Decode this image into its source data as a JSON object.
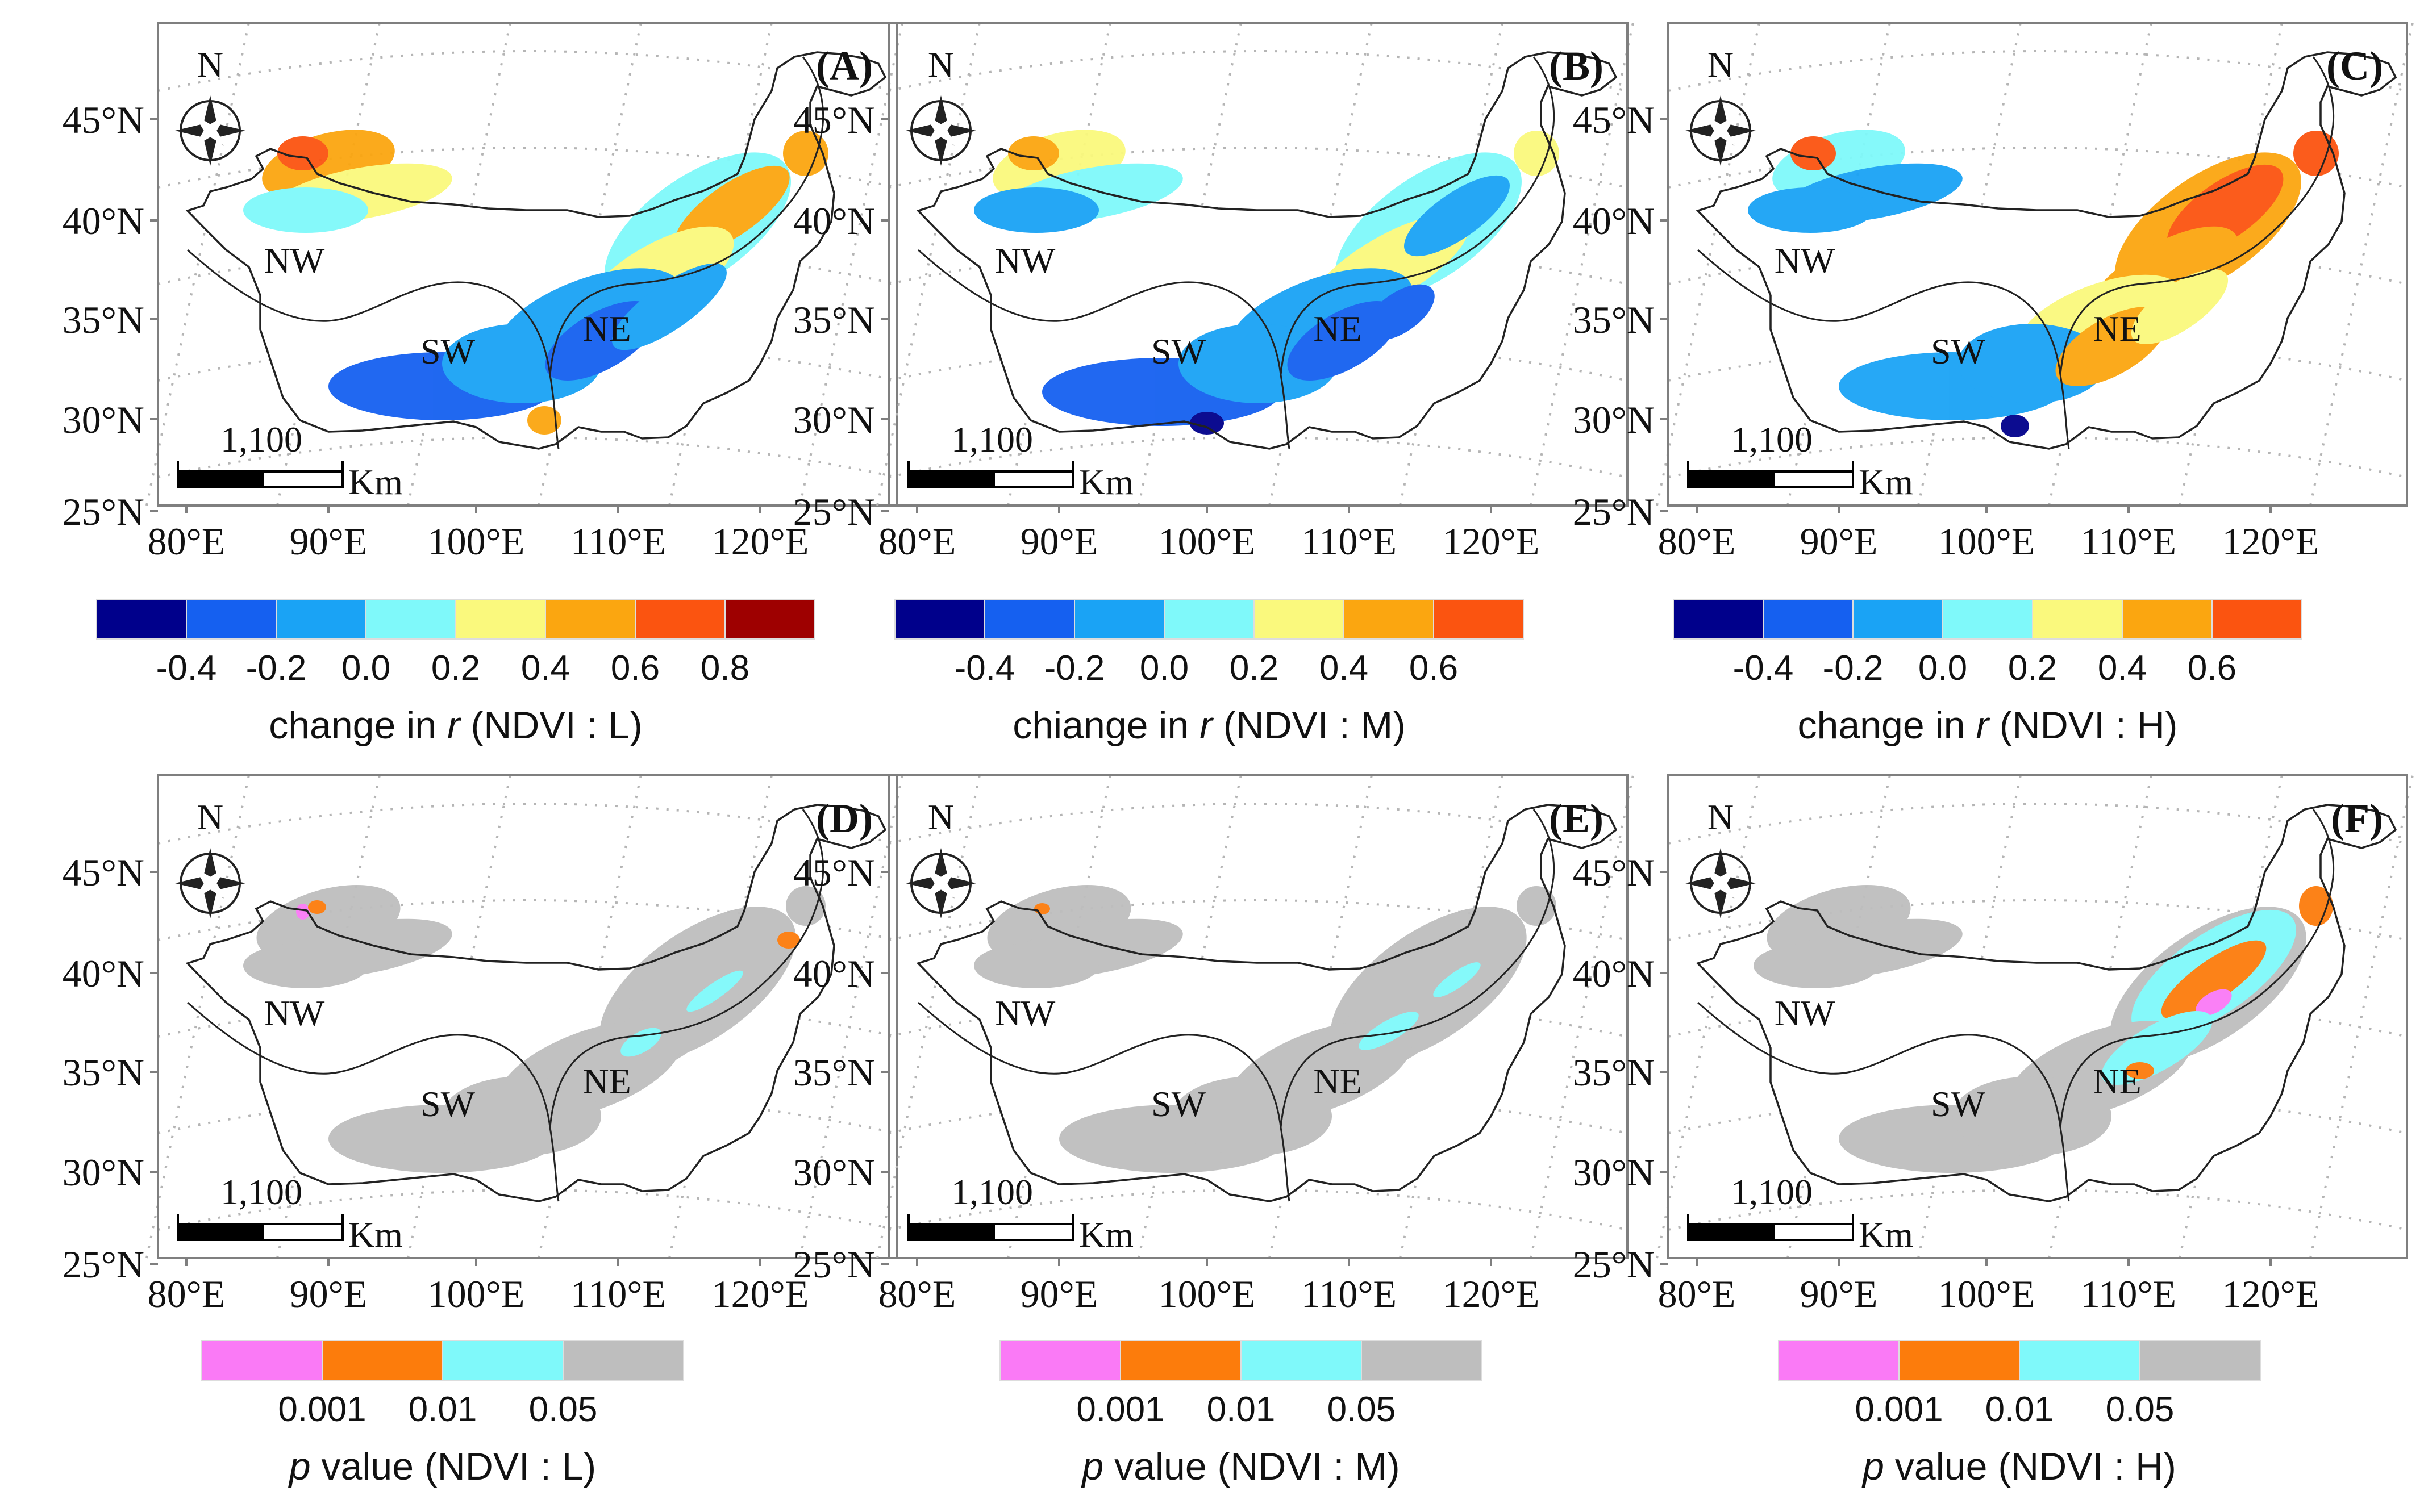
{
  "colors": {
    "neg_04": "#00008B",
    "neg_02": "#1560F0",
    "neg_00": "#1AA3F5",
    "pos_00": "#7FF9FA",
    "pos_02": "#FAF97D",
    "pos_04": "#FBA610",
    "pos_06": "#FB5410",
    "pos_08": "#9E0000",
    "p_001": "#FA7AF6",
    "p_01": "#FC7C0C",
    "p_05": "#7FF9FA",
    "p_ns": "#BEBEBE",
    "frame": "#7f7f7f",
    "outline": "#222222",
    "grid": "#b5b5b5"
  },
  "lat_ticks": [
    "45°N",
    "40°N",
    "35°N",
    "30°N",
    "25°N"
  ],
  "lon_ticks": [
    "80°E",
    "90°E",
    "100°E",
    "110°E",
    "120°E"
  ],
  "north_label": "N",
  "scale_label": "1,100",
  "scale_unit": "Km",
  "regions": {
    "nw": "NW",
    "sw": "SW",
    "ne": "NE"
  },
  "panels": [
    {
      "letter": "(A)",
      "variant": "r",
      "level": "L"
    },
    {
      "letter": "(B)",
      "variant": "r",
      "level": "M"
    },
    {
      "letter": "(C)",
      "variant": "r",
      "level": "H"
    },
    {
      "letter": "(D)",
      "variant": "p",
      "level": "L"
    },
    {
      "letter": "(E)",
      "variant": "p",
      "level": "M"
    },
    {
      "letter": "(F)",
      "variant": "p",
      "level": "H"
    }
  ],
  "legends": [
    {
      "title_prefix": "change in",
      "symbol": "r",
      "suffix": "(NDVI : L)",
      "swatches": [
        "neg_04",
        "neg_02",
        "neg_00",
        "pos_00",
        "pos_02",
        "pos_04",
        "pos_06",
        "pos_08"
      ],
      "labels": [
        "-0.4",
        "-0.2",
        "0.0",
        "0.2",
        "0.4",
        "0.6",
        "0.8"
      ]
    },
    {
      "title_prefix": "chiange in",
      "symbol": "r",
      "suffix": "(NDVI : M)",
      "swatches": [
        "neg_04",
        "neg_02",
        "neg_00",
        "pos_00",
        "pos_02",
        "pos_04",
        "pos_06"
      ],
      "labels": [
        "-0.4",
        "-0.2",
        "0.0",
        "0.2",
        "0.4",
        "0.6"
      ]
    },
    {
      "title_prefix": "change in",
      "symbol": "r",
      "suffix": "(NDVI : H)",
      "swatches": [
        "neg_04",
        "neg_02",
        "neg_00",
        "pos_00",
        "pos_02",
        "pos_04",
        "pos_06"
      ],
      "labels": [
        "-0.4",
        "-0.2",
        "0.0",
        "0.2",
        "0.4",
        "0.6"
      ]
    },
    {
      "title_prefix": "",
      "symbol": "p",
      "suffix": "value  (NDVI : L)",
      "swatches": [
        "p_001",
        "p_01",
        "p_05",
        "p_ns"
      ],
      "labels": [
        "0.001",
        "0.01",
        "0.05"
      ]
    },
    {
      "title_prefix": "",
      "symbol": "p",
      "suffix": "value  (NDVI : M)",
      "swatches": [
        "p_001",
        "p_01",
        "p_05",
        "p_ns"
      ],
      "labels": [
        "0.001",
        "0.01",
        "0.05"
      ]
    },
    {
      "title_prefix": "",
      "symbol": "p",
      "suffix": "value  (NDVI : H)",
      "swatches": [
        "p_001",
        "p_01",
        "p_05",
        "p_ns"
      ],
      "labels": [
        "0.001",
        "0.01",
        "0.05"
      ]
    }
  ]
}
